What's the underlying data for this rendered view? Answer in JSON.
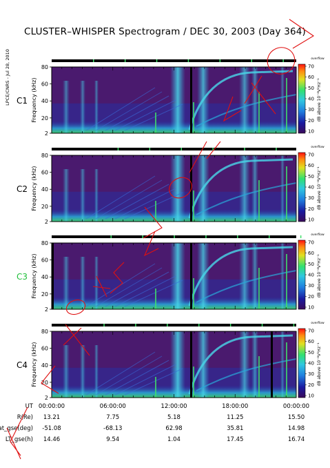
{
  "title": "CLUSTER–WHISPER Spectrogram / DEC 30, 2003 (Day 364)",
  "side_credit": "LPCE/CNRS - Jul 28, 2010",
  "colors": {
    "background": "#4a1a6e",
    "cold": "#2233aa",
    "mid": "#2aa8d8",
    "warm": "#3fe06a",
    "hot": "#e8e020",
    "max": "#ff2010",
    "annotation": "#e01010"
  },
  "chart_data": {
    "type": "heatmap",
    "title": "CLUSTER–WHISPER Spectrogram / DEC 30, 2003 (Day 364)",
    "panels": [
      {
        "name": "C1",
        "label_color": "#000000"
      },
      {
        "name": "C2",
        "label_color": "#000000"
      },
      {
        "name": "C3",
        "label_color": "#1fbf3a"
      },
      {
        "name": "C4",
        "label_color": "#000000"
      }
    ],
    "ylabel": "Frequency (kHz)",
    "yticks": [
      "2",
      "20",
      "40",
      "60",
      "80"
    ],
    "ylim": [
      2,
      80
    ],
    "colorbar": {
      "label": "dB above 10⁻⁸V²Hz⁻¹",
      "ticks": [
        "10",
        "20",
        "30",
        "40",
        "50",
        "60",
        "70"
      ],
      "range": [
        10,
        70
      ],
      "top_tag": "overflow"
    },
    "xticks": [
      "00:00:00",
      "06:00:00",
      "12:00:00",
      "18:00:00",
      "00:00:00"
    ],
    "ephemeris": {
      "UT": {
        "label": "UT",
        "values": [
          "00:00:00",
          "06:00:00",
          "12:00:00",
          "18:00:00",
          "00:00:00"
        ]
      },
      "R": {
        "label": "R(Re)",
        "values": [
          "13.21",
          "7.75",
          "5.18",
          "11.25",
          "15.50"
        ]
      },
      "Lat": {
        "label": "Lat_gse(deg)",
        "values": [
          "-51.08",
          "-68.13",
          "62.98",
          "35.81",
          "14.98"
        ]
      },
      "LT": {
        "label": "LT_gse(h)",
        "values": [
          "14.46",
          "9.54",
          "1.04",
          "17.45",
          "16.74"
        ]
      }
    }
  }
}
